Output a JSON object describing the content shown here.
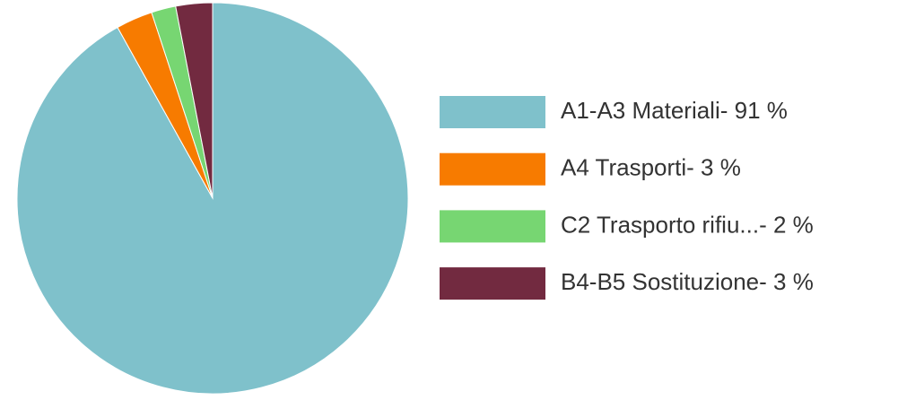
{
  "chart_data": {
    "type": "pie",
    "categories": [
      "A1-A3 Materiali- 91 %",
      "A4 Trasporti- 3 %",
      "C2 Trasporto rifiu...- 2 %",
      "B4-B5 Sostituzione- 3 %"
    ],
    "values": [
      91,
      3,
      2,
      3
    ],
    "colors": [
      "#7fc1cb",
      "#f77b00",
      "#77d672",
      "#722a40"
    ],
    "legend": "right"
  }
}
